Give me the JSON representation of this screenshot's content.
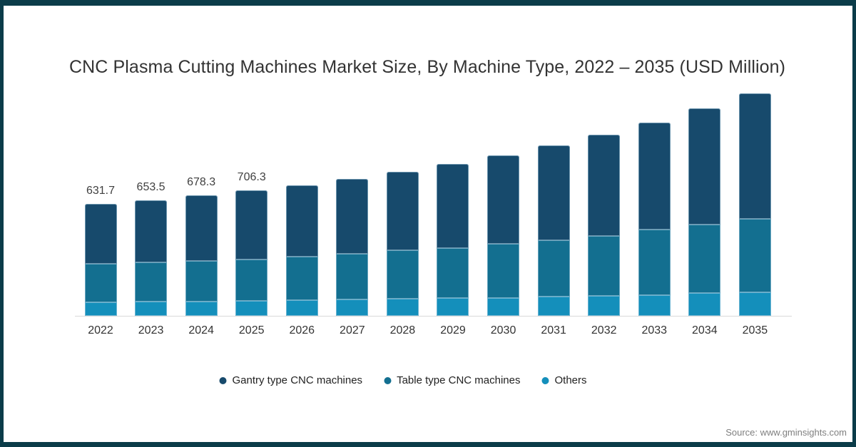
{
  "title": "CNC Plasma Cutting Machines Market Size, By Machine Type, 2022 – 2035 (USD Million)",
  "source": "Source: www.gminsights.com",
  "colors": {
    "frame_border": "#0B3C49",
    "axis_line": "#D9D9D9",
    "title_text": "#333333",
    "label_text": "#404040",
    "source_text": "#7F7F7F"
  },
  "legend": [
    {
      "label": "Gantry type CNC machines",
      "color": "#174A6C"
    },
    {
      "label": "Table type CNC machines",
      "color": "#136F90"
    },
    {
      "label": "Others",
      "color": "#148FBB"
    }
  ],
  "chart_data": {
    "type": "bar",
    "stacked": true,
    "title": "CNC Plasma Cutting Machines Market Size, By Machine Type, 2022 – 2035 (USD Million)",
    "unit": "USD Million",
    "legend_position": "bottom",
    "value_axis_visible": false,
    "grid": false,
    "categories": [
      "2022",
      "2023",
      "2024",
      "2025",
      "2026",
      "2027",
      "2028",
      "2029",
      "2030",
      "2031",
      "2032",
      "2033",
      "2034",
      "2035"
    ],
    "series": [
      {
        "name": "Gantry type CNC machines",
        "color": "#174A6C",
        "values": [
          338.0,
          352.0,
          370.0,
          388.7,
          401,
          424,
          442,
          475,
          502,
          534,
          571,
          605,
          655,
          707
        ]
      },
      {
        "name": "Table type CNC machines",
        "color": "#136F90",
        "values": [
          217.0,
          222.0,
          229.3,
          232.3,
          247,
          258,
          273,
          284,
          303,
          320,
          340,
          367,
          387,
          416
        ]
      },
      {
        "name": "Others",
        "color": "#148FBB",
        "values": [
          76.7,
          79.5,
          79.0,
          85.3,
          88,
          92,
          96,
          99,
          102,
          107,
          111,
          118,
          127,
          131
        ]
      }
    ],
    "totals": [
      631.7,
      653.5,
      678.3,
      706.3,
      736,
      774,
      811,
      858,
      907,
      961,
      1022,
      1090,
      1169,
      1254
    ],
    "total_labels": [
      "631.7",
      "653.5",
      "678.3",
      "706.3",
      "",
      "",
      "",
      "",
      "",
      "",
      "",
      "",
      "",
      ""
    ]
  }
}
